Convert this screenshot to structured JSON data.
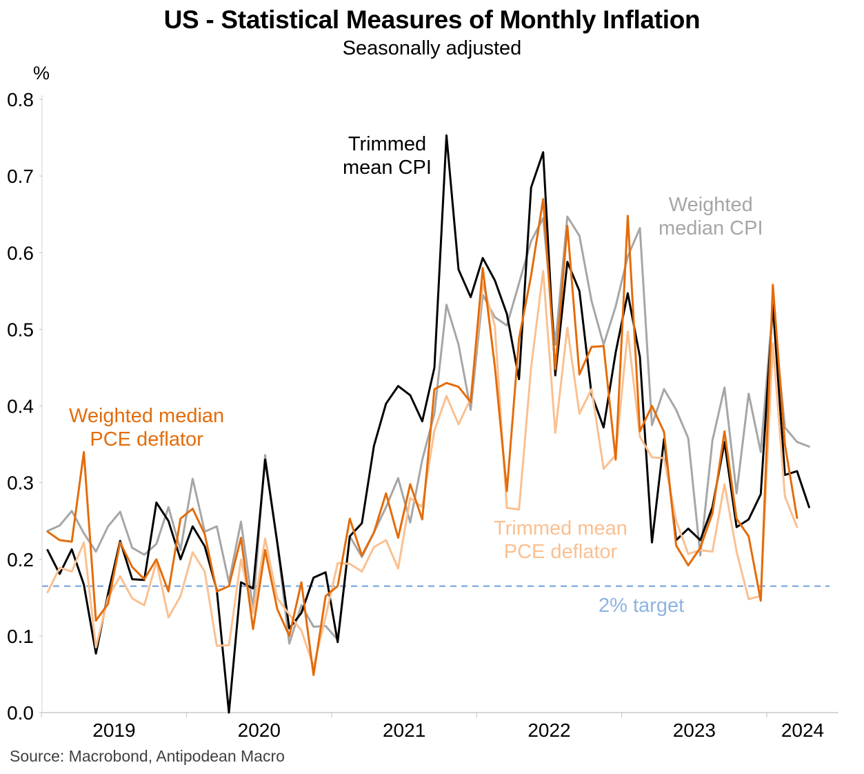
{
  "title": "US - Statistical Measures of Monthly Inflation",
  "subtitle": "Seasonally adjusted",
  "source": "Source: Macrobond, Antipodean Macro",
  "annotations": {
    "trimmed_mean_cpi": [
      "Trimmed",
      "mean CPI"
    ],
    "weighted_median_cpi": [
      "Weighted",
      "median CPI"
    ],
    "weighted_median_pce": [
      "Weighted median",
      "PCE deflator"
    ],
    "trimmed_mean_pce": [
      "Trimmed mean",
      "PCE deflator"
    ],
    "target": "2% target"
  },
  "chart_data": {
    "type": "line",
    "ylabel": "%",
    "ylim": [
      0.0,
      0.8
    ],
    "yticks": [
      "0.0",
      "0.1",
      "0.2",
      "0.3",
      "0.4",
      "0.5",
      "0.6",
      "0.7",
      "0.8"
    ],
    "xticks": [
      "2019",
      "2020",
      "2021",
      "2022",
      "2023",
      "2024"
    ],
    "x_start": "2019-01",
    "x_end": "2024-04",
    "grid": false,
    "target_line": {
      "label": "2% target",
      "value": 0.165,
      "color": "#8db3e2",
      "style": "dashed"
    },
    "series": [
      {
        "name": "Weighted median CPI",
        "color": "#a6a6a6",
        "values": [
          0.237,
          0.244,
          0.263,
          0.234,
          0.21,
          0.243,
          0.262,
          0.215,
          0.206,
          0.22,
          0.268,
          0.212,
          0.305,
          0.236,
          0.243,
          0.17,
          0.249,
          0.135,
          0.336,
          0.22,
          0.09,
          0.14,
          0.112,
          0.113,
          0.095,
          0.23,
          0.203,
          0.235,
          0.268,
          0.306,
          0.248,
          0.33,
          0.39,
          0.532,
          0.48,
          0.395,
          0.545,
          0.516,
          0.505,
          0.56,
          0.615,
          0.645,
          0.48,
          0.647,
          0.622,
          0.537,
          0.48,
          0.53,
          0.595,
          0.632,
          0.375,
          0.422,
          0.395,
          0.358,
          0.205,
          0.355,
          0.424,
          0.286,
          0.416,
          0.34,
          0.53,
          0.372,
          0.353,
          0.347
        ]
      },
      {
        "name": "Trimmed mean CPI",
        "color": "#000000",
        "values": [
          0.212,
          0.181,
          0.213,
          0.167,
          0.077,
          0.155,
          0.224,
          0.174,
          0.173,
          0.274,
          0.25,
          0.2,
          0.243,
          0.217,
          0.16,
          0.0,
          0.17,
          0.162,
          0.33,
          0.222,
          0.11,
          0.13,
          0.176,
          0.183,
          0.092,
          0.23,
          0.247,
          0.348,
          0.403,
          0.426,
          0.414,
          0.38,
          0.45,
          0.753,
          0.578,
          0.542,
          0.593,
          0.564,
          0.52,
          0.435,
          0.685,
          0.731,
          0.44,
          0.588,
          0.55,
          0.415,
          0.372,
          0.47,
          0.547,
          0.464,
          0.222,
          0.357,
          0.225,
          0.24,
          0.225,
          0.268,
          0.353,
          0.242,
          0.252,
          0.285,
          0.532,
          0.31,
          0.315,
          0.268
        ]
      },
      {
        "name": "Trimmed mean PCE deflator",
        "color": "#fac090",
        "values": [
          0.157,
          0.189,
          0.184,
          0.222,
          0.085,
          0.15,
          0.178,
          0.149,
          0.14,
          0.197,
          0.124,
          0.152,
          0.209,
          0.184,
          0.087,
          0.088,
          0.2,
          0.13,
          0.227,
          0.149,
          0.128,
          0.107,
          0.06,
          0.125,
          0.195,
          0.194,
          0.184,
          0.216,
          0.225,
          0.188,
          0.28,
          0.268,
          0.368,
          0.413,
          0.376,
          0.41,
          0.56,
          0.505,
          0.267,
          0.265,
          0.45,
          0.576,
          0.365,
          0.502,
          0.39,
          0.422,
          0.318,
          0.336,
          0.497,
          0.36,
          0.333,
          0.332,
          0.25,
          0.207,
          0.212,
          0.21,
          0.298,
          0.21,
          0.148,
          0.152,
          0.482,
          0.282,
          0.242
        ]
      },
      {
        "name": "Weighted median PCE deflator",
        "color": "#e36c0a",
        "values": [
          0.236,
          0.225,
          0.223,
          0.34,
          0.12,
          0.142,
          0.222,
          0.19,
          0.174,
          0.2,
          0.158,
          0.253,
          0.266,
          0.233,
          0.158,
          0.165,
          0.228,
          0.109,
          0.212,
          0.135,
          0.1,
          0.17,
          0.049,
          0.152,
          0.165,
          0.253,
          0.205,
          0.235,
          0.286,
          0.228,
          0.298,
          0.252,
          0.422,
          0.43,
          0.425,
          0.405,
          0.58,
          0.452,
          0.289,
          0.488,
          0.57,
          0.67,
          0.448,
          0.635,
          0.441,
          0.477,
          0.478,
          0.33,
          0.648,
          0.367,
          0.4,
          0.366,
          0.218,
          0.192,
          0.215,
          0.26,
          0.367,
          0.253,
          0.23,
          0.146,
          0.558,
          0.35,
          0.254
        ]
      }
    ]
  }
}
